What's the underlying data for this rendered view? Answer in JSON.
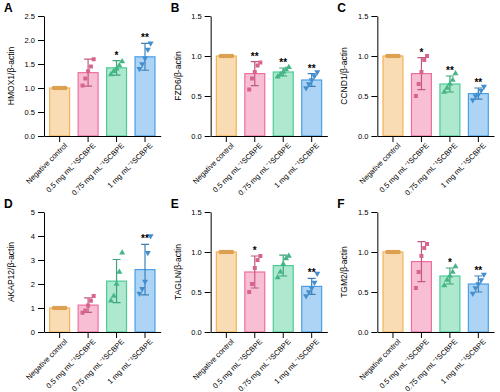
{
  "chart_data": [
    {
      "type": "bar",
      "title": "A",
      "y_label": "HMOX1/β-actin",
      "categories": [
        "Negative control",
        "0.5 mg mL⁻¹SCBPE",
        "0.75 mg mL⁻¹SCBPE",
        "1 mg mL⁻¹SCBPE"
      ],
      "values": [
        1.0,
        1.32,
        1.42,
        1.65
      ],
      "errors": [
        0,
        0.28,
        0.15,
        0.28
      ],
      "points": [
        [
          1.0,
          1.0,
          1.0,
          1.0,
          1.0
        ],
        [
          1.05,
          1.2,
          1.35,
          1.45,
          1.6
        ],
        [
          1.28,
          1.35,
          1.4,
          1.47,
          1.55
        ],
        [
          1.4,
          1.5,
          1.62,
          1.8,
          1.93
        ]
      ],
      "annotations": [
        null,
        null,
        "*",
        "**"
      ],
      "colors": [
        "#f4b259",
        "#ee6f9f",
        "#4ccb94",
        "#4a9fe6"
      ],
      "ylim": [
        0,
        2.5
      ],
      "yticks": [
        {
          "value": 0,
          "label": "0.0"
        },
        {
          "value": 0.5,
          "label": "0.5"
        },
        {
          "value": 1,
          "label": "1.0"
        },
        {
          "value": 1.5,
          "label": "1.5"
        },
        {
          "value": 2,
          "label": "2.0"
        },
        {
          "value": 2.5,
          "label": "2.5"
        }
      ]
    },
    {
      "type": "bar",
      "title": "B",
      "y_label": "FZD6/β-actin",
      "categories": [
        "Negative control",
        "0.5 mg mL⁻¹SCBPE",
        "0.75 mg mL⁻¹SCBPE",
        "1 mg mL⁻¹SCBPE"
      ],
      "values": [
        1.0,
        0.78,
        0.8,
        0.7
      ],
      "errors": [
        0,
        0.15,
        0.05,
        0.08
      ],
      "points": [
        [
          1.0,
          1.0,
          1.0,
          1.0,
          1.0
        ],
        [
          0.58,
          0.72,
          0.8,
          0.88,
          0.92
        ],
        [
          0.74,
          0.77,
          0.8,
          0.83,
          0.86
        ],
        [
          0.6,
          0.65,
          0.7,
          0.75,
          0.8
        ]
      ],
      "annotations": [
        null,
        "**",
        "**",
        "**"
      ],
      "colors": [
        "#f4b259",
        "#ee6f9f",
        "#4ccb94",
        "#4a9fe6"
      ],
      "ylim": [
        0,
        1.5
      ],
      "yticks": [
        {
          "value": 0,
          "label": "0.0"
        },
        {
          "value": 0.5,
          "label": "0.5"
        },
        {
          "value": 1,
          "label": "1.0"
        },
        {
          "value": 1.5,
          "label": "1.5"
        }
      ]
    },
    {
      "type": "bar",
      "title": "C",
      "y_label": "CCND1/β-actin",
      "categories": [
        "Negative control",
        "0.5 mg mL⁻¹SCBPE",
        "0.75 mg mL⁻¹SCBPE",
        "1 mg mL⁻¹SCBPE"
      ],
      "values": [
        1.0,
        0.78,
        0.65,
        0.53
      ],
      "errors": [
        0,
        0.2,
        0.1,
        0.07
      ],
      "points": [
        [
          1.0,
          1.0,
          1.0,
          1.0,
          1.0
        ],
        [
          0.5,
          0.65,
          0.8,
          0.95,
          1.0
        ],
        [
          0.55,
          0.6,
          0.65,
          0.7,
          0.78
        ],
        [
          0.45,
          0.5,
          0.52,
          0.57,
          0.62
        ]
      ],
      "annotations": [
        null,
        "*",
        "**",
        "**"
      ],
      "colors": [
        "#f4b259",
        "#ee6f9f",
        "#4ccb94",
        "#4a9fe6"
      ],
      "ylim": [
        0,
        1.5
      ],
      "yticks": [
        {
          "value": 0,
          "label": "0.0"
        },
        {
          "value": 0.5,
          "label": "0.5"
        },
        {
          "value": 1,
          "label": "1.0"
        },
        {
          "value": 1.5,
          "label": "1.5"
        }
      ]
    },
    {
      "type": "bar",
      "title": "D",
      "y_label": "AKAP12/β-actin",
      "categories": [
        "Negative control",
        "0.5 mg mL⁻¹SCBPE",
        "0.75 mg mL⁻¹SCBPE",
        "1 mg mL⁻¹SCBPE"
      ],
      "values": [
        1.0,
        1.12,
        2.12,
        2.6
      ],
      "errors": [
        0,
        0.3,
        0.9,
        1.05
      ],
      "points": [
        [
          1.0,
          1.0,
          1.0,
          1.0,
          1.0
        ],
        [
          0.8,
          0.9,
          1.1,
          1.3,
          1.5
        ],
        [
          1.3,
          1.5,
          2.0,
          2.5,
          3.3
        ],
        [
          1.6,
          1.8,
          2.1,
          3.3,
          4.0
        ]
      ],
      "annotations": [
        null,
        null,
        null,
        "**"
      ],
      "colors": [
        "#f4b259",
        "#ee6f9f",
        "#4ccb94",
        "#4a9fe6"
      ],
      "ylim": [
        0,
        5
      ],
      "yticks": [
        0,
        1,
        2,
        3,
        4,
        5
      ]
    },
    {
      "type": "bar",
      "title": "E",
      "y_label": "TAGLN/β-actin",
      "categories": [
        "Negative control",
        "0.5 mg mL⁻¹SCBPE",
        "0.75 mg mL⁻¹SCBPE",
        "1 mg mL⁻¹SCBPE"
      ],
      "values": [
        1.0,
        0.75,
        0.83,
        0.57
      ],
      "errors": [
        0,
        0.2,
        0.13,
        0.1
      ],
      "points": [
        [
          1.0,
          1.0,
          1.0,
          1.0,
          1.0
        ],
        [
          0.5,
          0.6,
          0.8,
          0.9,
          0.95
        ],
        [
          0.68,
          0.75,
          0.85,
          0.92,
          0.95
        ],
        [
          0.45,
          0.5,
          0.55,
          0.62,
          0.73
        ]
      ],
      "annotations": [
        null,
        "*",
        null,
        "**"
      ],
      "colors": [
        "#f4b259",
        "#ee6f9f",
        "#4ccb94",
        "#4a9fe6"
      ],
      "ylim": [
        0,
        1.5
      ],
      "yticks": [
        {
          "value": 0,
          "label": "0.0"
        },
        {
          "value": 0.5,
          "label": "0.5"
        },
        {
          "value": 1,
          "label": "1.0"
        },
        {
          "value": 1.5,
          "label": "1.5"
        }
      ]
    },
    {
      "type": "bar",
      "title": "F",
      "y_label": "TGM2/β-actin",
      "categories": [
        "Negative control",
        "0.5 mg mL⁻¹SCBPE",
        "0.75 mg mL⁻¹SCBPE",
        "1 mg mL⁻¹SCBPE"
      ],
      "values": [
        1.0,
        0.88,
        0.7,
        0.6
      ],
      "errors": [
        0,
        0.25,
        0.1,
        0.1
      ],
      "points": [
        [
          1.0,
          1.0,
          1.0,
          1.0,
          1.0
        ],
        [
          0.55,
          0.75,
          0.95,
          1.05,
          1.1
        ],
        [
          0.58,
          0.65,
          0.7,
          0.75,
          0.82
        ],
        [
          0.48,
          0.55,
          0.6,
          0.65,
          0.72
        ]
      ],
      "annotations": [
        null,
        null,
        "*",
        "**"
      ],
      "colors": [
        "#f4b259",
        "#ee6f9f",
        "#4ccb94",
        "#4a9fe6"
      ],
      "ylim": [
        0,
        1.5
      ],
      "yticks": [
        {
          "value": 0,
          "label": "0.0"
        },
        {
          "value": 0.5,
          "label": "0.5"
        },
        {
          "value": 1,
          "label": "1.0"
        },
        {
          "value": 1.5,
          "label": "1.5"
        }
      ]
    }
  ]
}
